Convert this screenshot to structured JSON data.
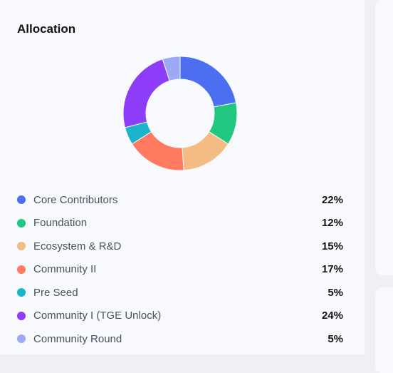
{
  "card": {
    "title": "Allocation"
  },
  "chart_data": {
    "type": "pie",
    "title": "Allocation",
    "slices": [
      {
        "label": "Core Contributors",
        "value": 22,
        "display": "22%",
        "color": "#4c6ef0"
      },
      {
        "label": "Foundation",
        "value": 12,
        "display": "12%",
        "color": "#1fc77f"
      },
      {
        "label": "Ecosystem & R&D",
        "value": 15,
        "display": "15%",
        "color": "#f5bb84"
      },
      {
        "label": "Community II",
        "value": 17,
        "display": "17%",
        "color": "#ff7a5f"
      },
      {
        "label": "Pre Seed",
        "value": 5,
        "display": "5%",
        "color": "#19b4c9"
      },
      {
        "label": "Community I (TGE Unlock)",
        "value": 24,
        "display": "24%",
        "color": "#8d3cf7"
      },
      {
        "label": "Community Round",
        "value": 5,
        "display": "5%",
        "color": "#9ba9f7"
      }
    ],
    "donut": true
  }
}
